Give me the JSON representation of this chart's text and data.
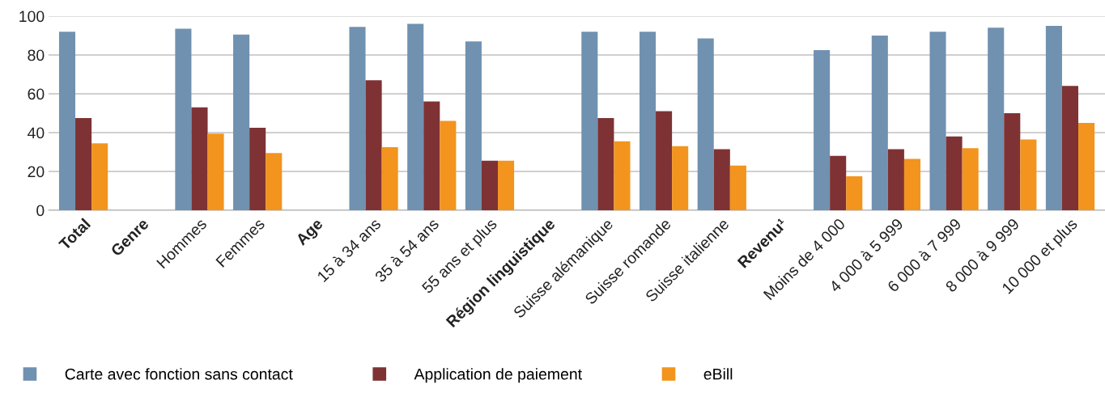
{
  "chart_data": {
    "type": "bar",
    "categories": [
      "Total",
      "Genre",
      "Hommes",
      "Femmes",
      "Age",
      "15 à 34 ans",
      "35 à 54 ans",
      "55 ans et plus",
      "Région linguistique",
      "Suisse alémanique",
      "Suisse romande",
      "Suisse italienne",
      "Revenu¹",
      "Moins de 4 000",
      "4 000 à 5 999",
      "6 000 à 7 999",
      "8 000 à 9 999",
      "10 000 et plus"
    ],
    "series": [
      {
        "name": "Carte avec fonction sans contact",
        "color": "#7191b0",
        "values": [
          92,
          null,
          93.5,
          90.5,
          null,
          94.5,
          96,
          87,
          null,
          92,
          92,
          88.5,
          null,
          82.5,
          90,
          92,
          94,
          95
        ]
      },
      {
        "name": "Application de paiement",
        "color": "#7e3234",
        "values": [
          47.5,
          null,
          53,
          42.5,
          null,
          67,
          56,
          25.5,
          null,
          47.5,
          51,
          31.5,
          null,
          28,
          31.5,
          38,
          50,
          64
        ]
      },
      {
        "name": "eBill",
        "color": "#f2941e",
        "values": [
          34.5,
          null,
          39.5,
          29.5,
          null,
          32.5,
          46,
          25.5,
          null,
          35.5,
          33,
          23,
          null,
          17.5,
          26.5,
          32,
          36.5,
          45
        ]
      }
    ],
    "ylim": [
      0,
      100
    ],
    "yticks": [
      0,
      20,
      40,
      60,
      80,
      100
    ],
    "grid": "y",
    "legend": "bottom left"
  }
}
